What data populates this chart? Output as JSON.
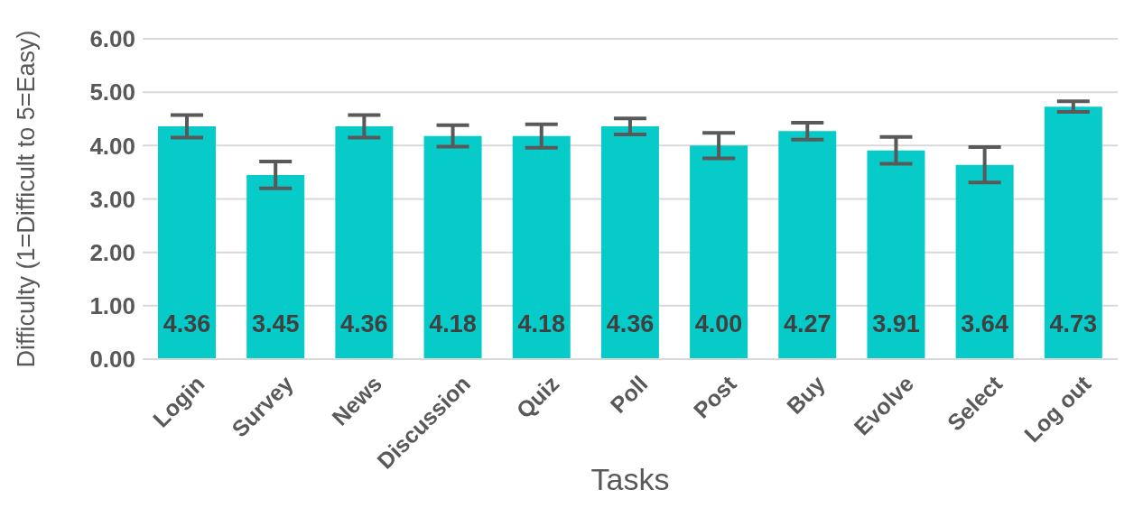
{
  "chart_data": {
    "type": "bar",
    "xlabel": "Tasks",
    "ylabel": "Difficulty (1=Difficult to 5=Easy)",
    "categories": [
      "Login",
      "Survey",
      "News",
      "Discussion",
      "Quiz",
      "Poll",
      "Post",
      "Buy",
      "Evolve",
      "Select",
      "Log out"
    ],
    "values": [
      4.36,
      3.45,
      4.36,
      4.18,
      4.18,
      4.36,
      4.0,
      4.27,
      3.91,
      3.64,
      4.73
    ],
    "value_labels": [
      "4.36",
      "3.45",
      "4.36",
      "4.18",
      "4.18",
      "4.36",
      "4.00",
      "4.27",
      "3.91",
      "3.64",
      "4.73"
    ],
    "errors": [
      0.21,
      0.25,
      0.21,
      0.2,
      0.22,
      0.15,
      0.24,
      0.16,
      0.25,
      0.33,
      0.1
    ],
    "color": "#06cbc9",
    "ylim": [
      0,
      6
    ],
    "yticks": [
      {
        "value": 0,
        "label": "0.00"
      },
      {
        "value": 1,
        "label": "1.00"
      },
      {
        "value": 2,
        "label": "2.00"
      },
      {
        "value": 3,
        "label": "3.00"
      },
      {
        "value": 4,
        "label": "4.00"
      },
      {
        "value": 5,
        "label": "5.00"
      },
      {
        "value": 6,
        "label": "6.00"
      }
    ],
    "grid": "y"
  }
}
